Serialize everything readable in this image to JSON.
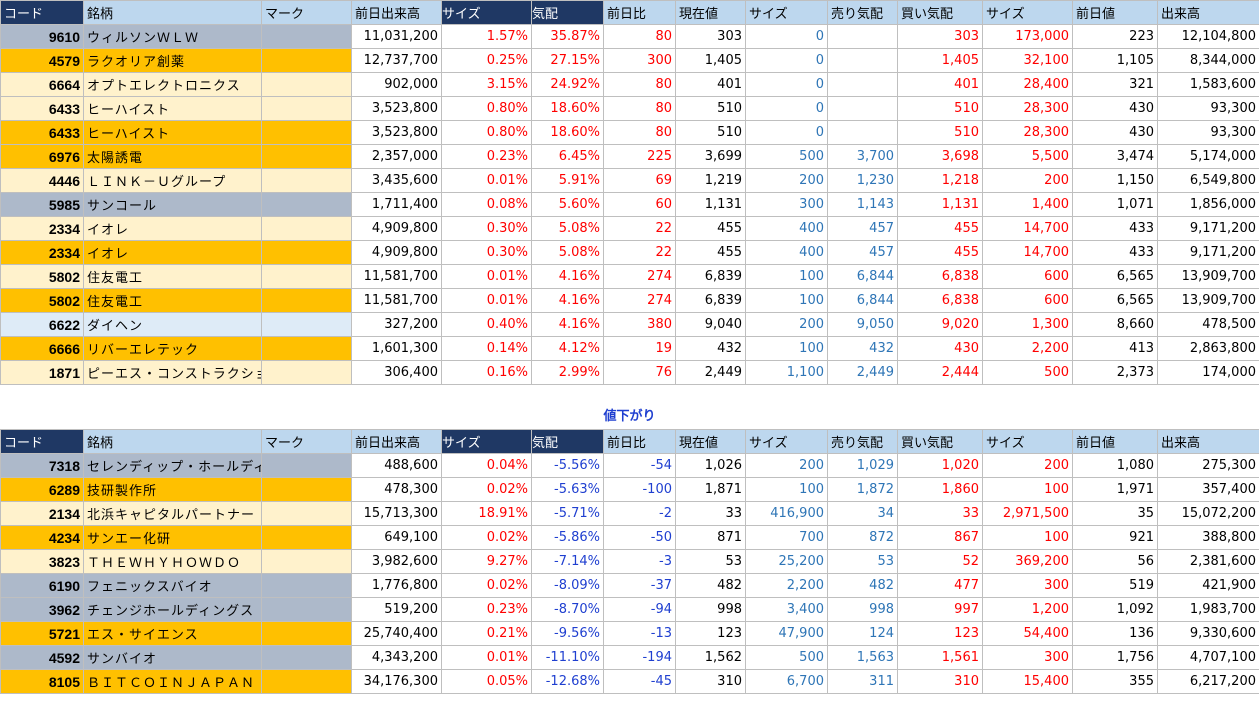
{
  "headers": [
    "コード",
    "銘柄",
    "マーク",
    "前日出来高",
    "サイズ",
    "気配",
    "前日比",
    "現在値",
    "サイズ",
    "売り気配",
    "買い気配",
    "サイズ",
    "前日値",
    "出来高"
  ],
  "section_down_label": "値下がり",
  "row_colors": {
    "orange": "#ffc000",
    "cream": "#fff2cc",
    "gray": "#adb9ca",
    "blue": "#deebf7"
  },
  "up_rows": [
    {
      "bg": "gray",
      "code": "9610",
      "name": "ウィルソンＷＬＷ",
      "prev_volume": "11,031,200",
      "size_pct": "1.57%",
      "kehai": "35.87%",
      "change": "80",
      "price": "303",
      "size1": "0",
      "ask": "",
      "bid": "303",
      "size2": "173,000",
      "prev_price": "223",
      "volume": "12,104,800"
    },
    {
      "bg": "orange",
      "code": "4579",
      "name": "ラクオリア創薬",
      "prev_volume": "12,737,700",
      "size_pct": "0.25%",
      "kehai": "27.15%",
      "change": "300",
      "price": "1,405",
      "size1": "0",
      "ask": "",
      "bid": "1,405",
      "size2": "32,100",
      "prev_price": "1,105",
      "volume": "8,344,000"
    },
    {
      "bg": "cream",
      "code": "6664",
      "name": "オプトエレクトロニクス",
      "prev_volume": "902,000",
      "size_pct": "3.15%",
      "kehai": "24.92%",
      "change": "80",
      "price": "401",
      "size1": "0",
      "ask": "",
      "bid": "401",
      "size2": "28,400",
      "prev_price": "321",
      "volume": "1,583,600"
    },
    {
      "bg": "cream",
      "code": "6433",
      "name": "ヒーハイスト",
      "prev_volume": "3,523,800",
      "size_pct": "0.80%",
      "kehai": "18.60%",
      "change": "80",
      "price": "510",
      "size1": "0",
      "ask": "",
      "bid": "510",
      "size2": "28,300",
      "prev_price": "430",
      "volume": "93,300"
    },
    {
      "bg": "orange",
      "code": "6433",
      "name": "ヒーハイスト",
      "prev_volume": "3,523,800",
      "size_pct": "0.80%",
      "kehai": "18.60%",
      "change": "80",
      "price": "510",
      "size1": "0",
      "ask": "",
      "bid": "510",
      "size2": "28,300",
      "prev_price": "430",
      "volume": "93,300"
    },
    {
      "bg": "orange",
      "code": "6976",
      "name": "太陽誘電",
      "prev_volume": "2,357,000",
      "size_pct": "0.23%",
      "kehai": "6.45%",
      "change": "225",
      "price": "3,699",
      "size1": "500",
      "ask": "3,700",
      "bid": "3,698",
      "size2": "5,500",
      "prev_price": "3,474",
      "volume": "5,174,000"
    },
    {
      "bg": "cream",
      "code": "4446",
      "name": "ＬＩＮＫ－Ｕグループ",
      "prev_volume": "3,435,600",
      "size_pct": "0.01%",
      "kehai": "5.91%",
      "change": "69",
      "price": "1,219",
      "size1": "200",
      "ask": "1,230",
      "bid": "1,218",
      "size2": "200",
      "prev_price": "1,150",
      "volume": "6,549,800"
    },
    {
      "bg": "gray",
      "code": "5985",
      "name": "サンコール",
      "prev_volume": "1,711,400",
      "size_pct": "0.08%",
      "kehai": "5.60%",
      "change": "60",
      "price": "1,131",
      "size1": "300",
      "ask": "1,143",
      "bid": "1,131",
      "size2": "1,400",
      "prev_price": "1,071",
      "volume": "1,856,000"
    },
    {
      "bg": "cream",
      "code": "2334",
      "name": "イオレ",
      "prev_volume": "4,909,800",
      "size_pct": "0.30%",
      "kehai": "5.08%",
      "change": "22",
      "price": "455",
      "size1": "400",
      "ask": "457",
      "bid": "455",
      "size2": "14,700",
      "prev_price": "433",
      "volume": "9,171,200"
    },
    {
      "bg": "orange",
      "code": "2334",
      "name": "イオレ",
      "prev_volume": "4,909,800",
      "size_pct": "0.30%",
      "kehai": "5.08%",
      "change": "22",
      "price": "455",
      "size1": "400",
      "ask": "457",
      "bid": "455",
      "size2": "14,700",
      "prev_price": "433",
      "volume": "9,171,200"
    },
    {
      "bg": "cream",
      "code": "5802",
      "name": "住友電工",
      "prev_volume": "11,581,700",
      "size_pct": "0.01%",
      "kehai": "4.16%",
      "change": "274",
      "price": "6,839",
      "size1": "100",
      "ask": "6,844",
      "bid": "6,838",
      "size2": "600",
      "prev_price": "6,565",
      "volume": "13,909,700"
    },
    {
      "bg": "orange",
      "code": "5802",
      "name": "住友電工",
      "prev_volume": "11,581,700",
      "size_pct": "0.01%",
      "kehai": "4.16%",
      "change": "274",
      "price": "6,839",
      "size1": "100",
      "ask": "6,844",
      "bid": "6,838",
      "size2": "600",
      "prev_price": "6,565",
      "volume": "13,909,700"
    },
    {
      "bg": "blue",
      "code": "6622",
      "name": "ダイヘン",
      "prev_volume": "327,200",
      "size_pct": "0.40%",
      "kehai": "4.16%",
      "change": "380",
      "price": "9,040",
      "size1": "200",
      "ask": "9,050",
      "bid": "9,020",
      "size2": "1,300",
      "prev_price": "8,660",
      "volume": "478,500"
    },
    {
      "bg": "orange",
      "code": "6666",
      "name": "リバーエレテック",
      "prev_volume": "1,601,300",
      "size_pct": "0.14%",
      "kehai": "4.12%",
      "change": "19",
      "price": "432",
      "size1": "100",
      "ask": "432",
      "bid": "430",
      "size2": "2,200",
      "prev_price": "413",
      "volume": "2,863,800"
    },
    {
      "bg": "cream",
      "code": "1871",
      "name": "ピーエス・コンストラクション",
      "prev_volume": "306,400",
      "size_pct": "0.16%",
      "kehai": "2.99%",
      "change": "76",
      "price": "2,449",
      "size1": "1,100",
      "ask": "2,449",
      "bid": "2,444",
      "size2": "500",
      "prev_price": "2,373",
      "volume": "174,000"
    }
  ],
  "down_rows": [
    {
      "bg": "gray",
      "code": "7318",
      "name": "セレンディップ・ホールディ",
      "prev_volume": "488,600",
      "size_pct": "0.04%",
      "kehai": "-5.56%",
      "change": "-54",
      "price": "1,026",
      "size1": "200",
      "ask": "1,029",
      "bid": "1,020",
      "size2": "200",
      "prev_price": "1,080",
      "volume": "275,300"
    },
    {
      "bg": "orange",
      "code": "6289",
      "name": "技研製作所",
      "prev_volume": "478,300",
      "size_pct": "0.02%",
      "kehai": "-5.63%",
      "change": "-100",
      "price": "1,871",
      "size1": "100",
      "ask": "1,872",
      "bid": "1,860",
      "size2": "100",
      "prev_price": "1,971",
      "volume": "357,400"
    },
    {
      "bg": "cream",
      "code": "2134",
      "name": "北浜キャピタルパートナー",
      "prev_volume": "15,713,300",
      "size_pct": "18.91%",
      "kehai": "-5.71%",
      "change": "-2",
      "price": "33",
      "size1": "416,900",
      "ask": "34",
      "bid": "33",
      "size2": "2,971,500",
      "prev_price": "35",
      "volume": "15,072,200"
    },
    {
      "bg": "orange",
      "code": "4234",
      "name": "サンエー化研",
      "prev_volume": "649,100",
      "size_pct": "0.02%",
      "kehai": "-5.86%",
      "change": "-50",
      "price": "871",
      "size1": "700",
      "ask": "872",
      "bid": "867",
      "size2": "100",
      "prev_price": "921",
      "volume": "388,800"
    },
    {
      "bg": "cream",
      "code": "3823",
      "name": "ＴＨＥＷＨＹＨＯＷＤＯ",
      "prev_volume": "3,982,600",
      "size_pct": "9.27%",
      "kehai": "-7.14%",
      "change": "-3",
      "price": "53",
      "size1": "25,200",
      "ask": "53",
      "bid": "52",
      "size2": "369,200",
      "prev_price": "56",
      "volume": "2,381,600"
    },
    {
      "bg": "gray",
      "code": "6190",
      "name": "フェニックスバイオ",
      "prev_volume": "1,776,800",
      "size_pct": "0.02%",
      "kehai": "-8.09%",
      "change": "-37",
      "price": "482",
      "size1": "2,200",
      "ask": "482",
      "bid": "477",
      "size2": "300",
      "prev_price": "519",
      "volume": "421,900"
    },
    {
      "bg": "gray",
      "code": "3962",
      "name": "チェンジホールディングス",
      "prev_volume": "519,200",
      "size_pct": "0.23%",
      "kehai": "-8.70%",
      "change": "-94",
      "price": "998",
      "size1": "3,400",
      "ask": "998",
      "bid": "997",
      "size2": "1,200",
      "prev_price": "1,092",
      "volume": "1,983,700"
    },
    {
      "bg": "orange",
      "code": "5721",
      "name": "エス・サイエンス",
      "prev_volume": "25,740,400",
      "size_pct": "0.21%",
      "kehai": "-9.56%",
      "change": "-13",
      "price": "123",
      "size1": "47,900",
      "ask": "124",
      "bid": "123",
      "size2": "54,400",
      "prev_price": "136",
      "volume": "9,330,600"
    },
    {
      "bg": "gray",
      "code": "4592",
      "name": "サンバイオ",
      "prev_volume": "4,343,200",
      "size_pct": "0.01%",
      "kehai": "-11.10%",
      "change": "-194",
      "price": "1,562",
      "size1": "500",
      "ask": "1,563",
      "bid": "1,561",
      "size2": "300",
      "prev_price": "1,756",
      "volume": "4,707,100"
    },
    {
      "bg": "orange",
      "code": "8105",
      "name": "ＢＩＴＣＯＩＮＪＡＰＡＮ",
      "prev_volume": "34,176,300",
      "size_pct": "0.05%",
      "kehai": "-12.68%",
      "change": "-45",
      "price": "310",
      "size1": "6,700",
      "ask": "311",
      "bid": "310",
      "size2": "15,400",
      "prev_price": "355",
      "volume": "6,217,200"
    }
  ]
}
